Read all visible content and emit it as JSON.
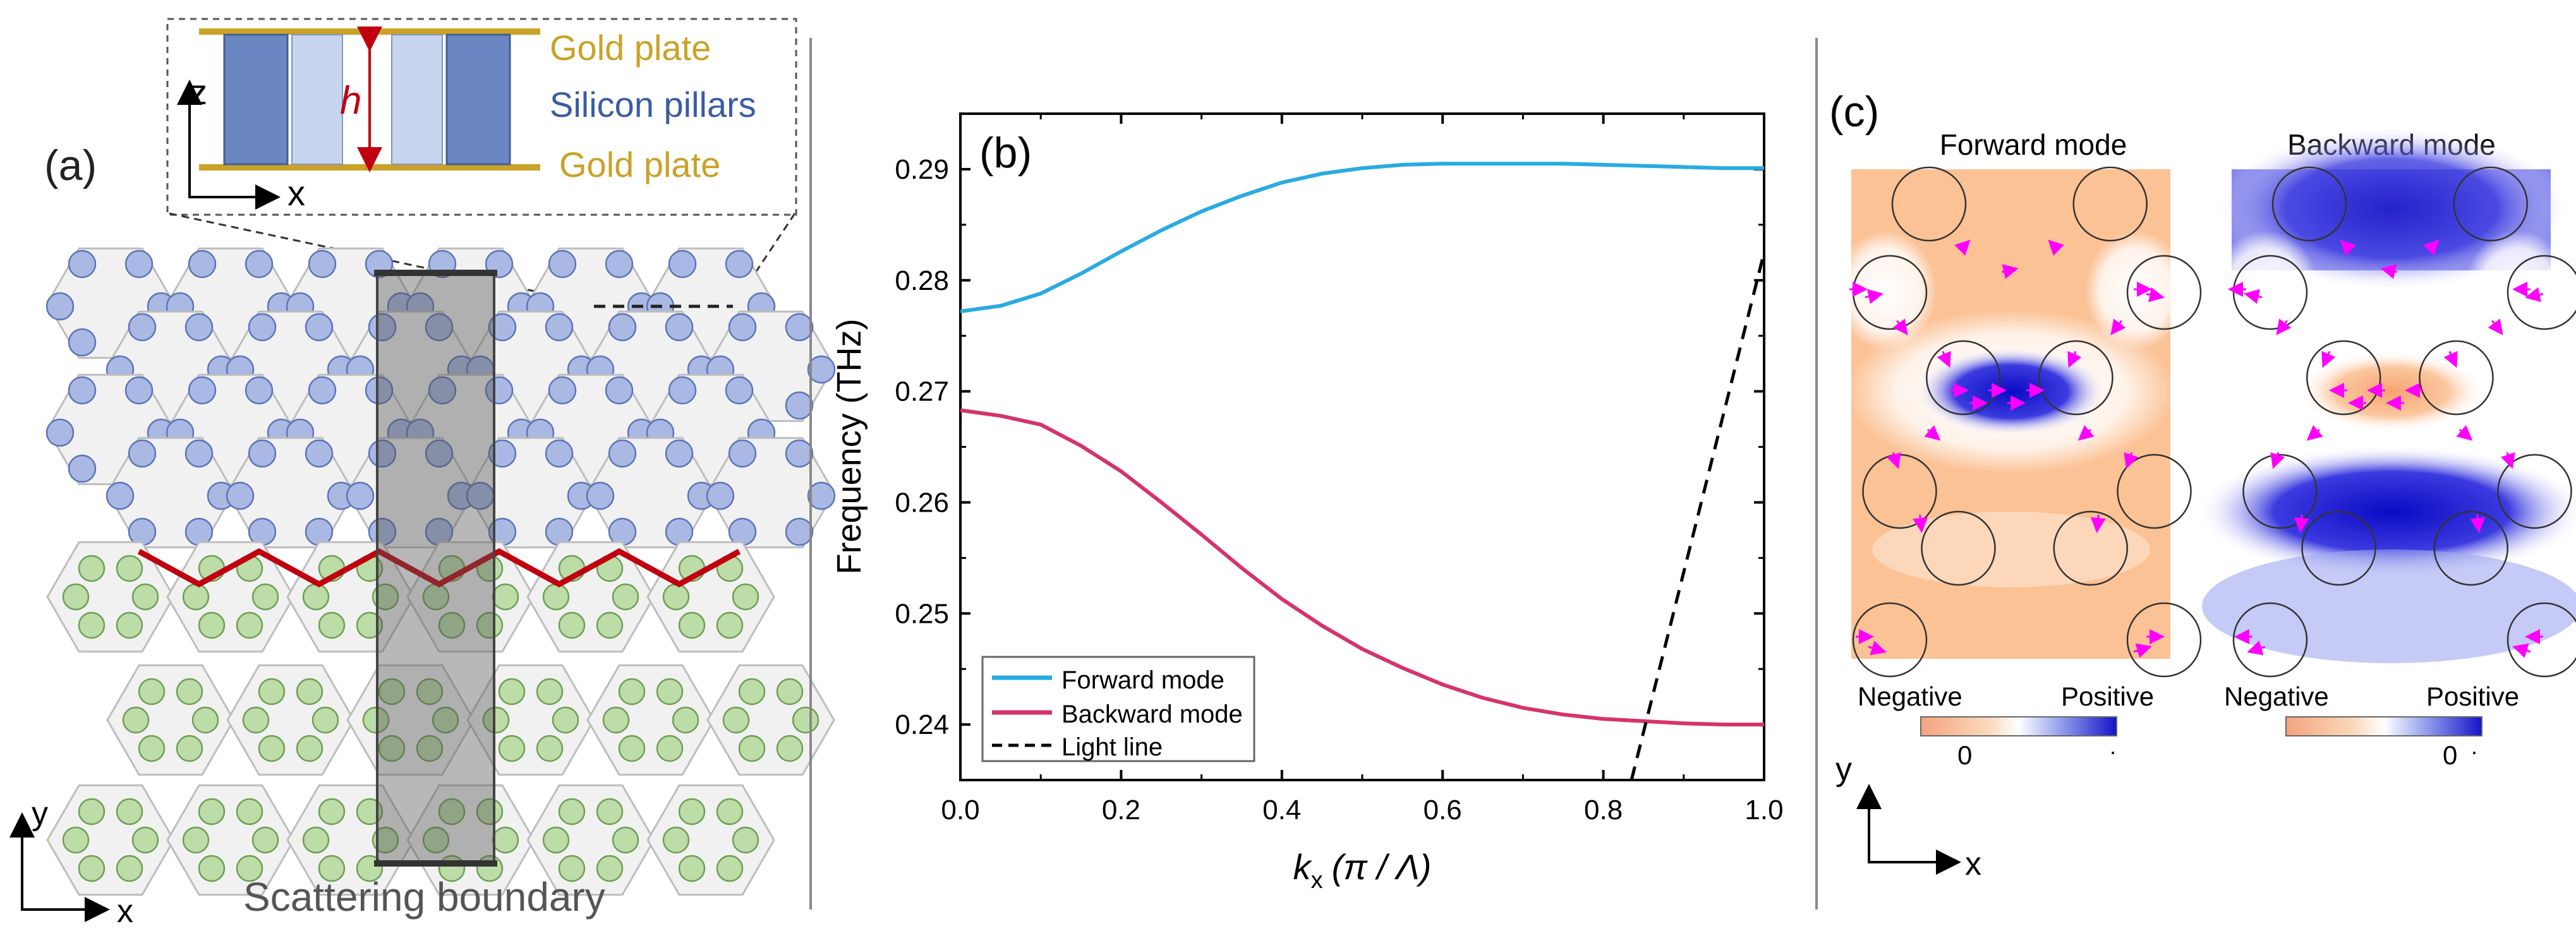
{
  "panel_a": {
    "label": "(a)",
    "inset": {
      "top_plate": "Gold plate",
      "bottom_plate": "Gold plate",
      "pillars": "Silicon pillars",
      "height_symbol": "h",
      "axis_z": "z",
      "axis_x": "x"
    },
    "boundary_label": "Scattering boundary",
    "axis_x": "x",
    "axis_y": "y",
    "colors": {
      "top_pillar": "#a9b9e4",
      "bottom_pillar": "#bcdca8",
      "boundary": "#c0000e",
      "gold": "#c9a227"
    }
  },
  "panel_b": {
    "label": "(b)",
    "x_label_k": "k",
    "x_label_sub": "x",
    "x_label_unit": "(π / Λ)",
    "y_label": "Frequency (THz)",
    "legend": [
      "Forward mode",
      "Backward mode",
      "Light line"
    ]
  },
  "chart_data": {
    "type": "line",
    "title": "",
    "xlabel": "kx (π/Λ)",
    "ylabel": "Frequency (THz)",
    "xlim": [
      0,
      1.0
    ],
    "ylim": [
      0.235,
      0.295
    ],
    "xticks": [
      "0.0",
      "0.2",
      "0.4",
      "0.6",
      "0.8",
      "1.0"
    ],
    "yticks": [
      "0.24",
      "0.25",
      "0.26",
      "0.27",
      "0.28",
      "0.29"
    ],
    "series": [
      {
        "name": "Forward mode",
        "color": "#29abe2",
        "style": "solid",
        "x": [
          0.0,
          0.05,
          0.1,
          0.15,
          0.2,
          0.25,
          0.3,
          0.35,
          0.4,
          0.45,
          0.5,
          0.55,
          0.6,
          0.65,
          0.7,
          0.75,
          0.8,
          0.85,
          0.9,
          0.95,
          1.0
        ],
        "y": [
          0.2772,
          0.2777,
          0.2788,
          0.2806,
          0.2826,
          0.2845,
          0.2862,
          0.2876,
          0.2888,
          0.2896,
          0.2901,
          0.2904,
          0.2905,
          0.2905,
          0.2905,
          0.2905,
          0.2904,
          0.2903,
          0.2902,
          0.2901,
          0.2901
        ]
      },
      {
        "name": "Backward mode",
        "color": "#d6336c",
        "style": "solid",
        "x": [
          0.0,
          0.05,
          0.1,
          0.15,
          0.2,
          0.25,
          0.3,
          0.35,
          0.4,
          0.45,
          0.5,
          0.55,
          0.6,
          0.65,
          0.7,
          0.75,
          0.8,
          0.85,
          0.9,
          0.95,
          1.0
        ],
        "y": [
          0.2683,
          0.2678,
          0.267,
          0.2651,
          0.2628,
          0.26,
          0.2571,
          0.2541,
          0.2513,
          0.2489,
          0.2468,
          0.2451,
          0.2436,
          0.2424,
          0.2415,
          0.2409,
          0.2405,
          0.2403,
          0.2401,
          0.24,
          0.24
        ]
      },
      {
        "name": "Light line",
        "color": "#000000",
        "style": "dashed",
        "x": [
          0.835,
          1.0
        ],
        "y": [
          0.235,
          0.2825
        ]
      }
    ]
  },
  "panel_c": {
    "label": "(c)",
    "titles": [
      "Forward mode",
      "Backward mode"
    ],
    "colorbar_neg": "Negative",
    "colorbar_pos": "Positive",
    "colorbar_zero": "0",
    "colorbar_dot": "·",
    "axis_x": "x",
    "axis_y": "y"
  }
}
